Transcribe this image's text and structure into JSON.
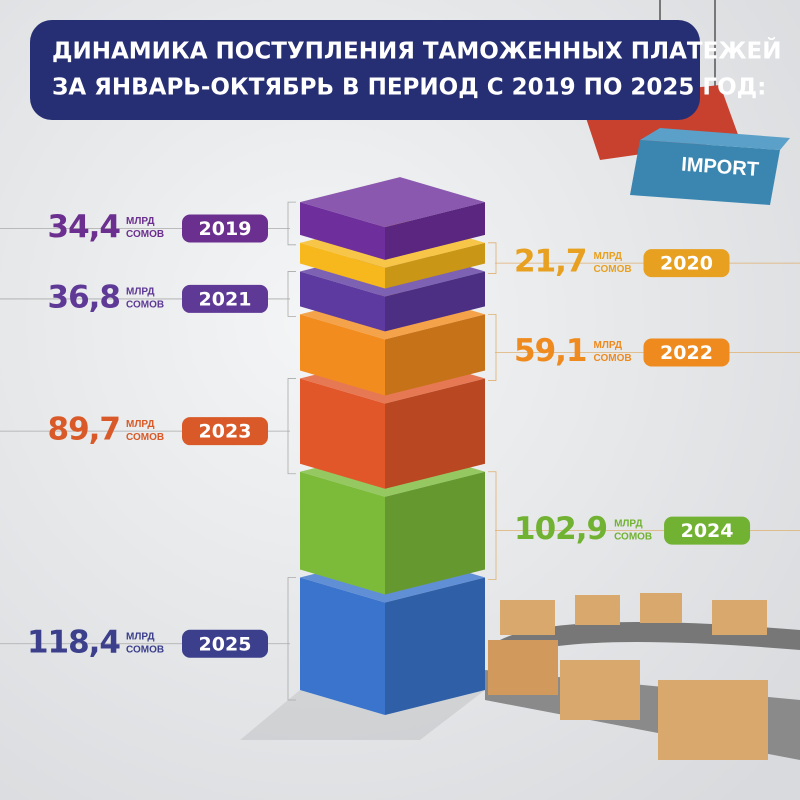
{
  "chart_data": {
    "type": "block-stack",
    "title_lines": [
      "ДИНАМИКА ПОСТУПЛЕНИЯ ТАМОЖЕННЫХ ПЛАТЕЖЕЙ",
      "ЗА ЯНВАРЬ-ОКТЯБРЬ В ПЕРИОД С 2019 ПО 2025 ГОД:"
    ],
    "categories": [
      "2019",
      "2020",
      "2021",
      "2022",
      "2023",
      "2024",
      "2025"
    ],
    "values": [
      34.4,
      21.7,
      36.8,
      59.1,
      89.7,
      102.9,
      118.4
    ],
    "value_labels": [
      "34,4",
      "21,7",
      "36,8",
      "59,1",
      "89,7",
      "102,9",
      "118,4"
    ],
    "unit_lines": [
      "МЛРД",
      "СОМОВ"
    ],
    "colors": [
      "#6e2f9c",
      "#f6b81c",
      "#5d3a9f",
      "#f28c1e",
      "#e2572a",
      "#7cbb3a",
      "#3a74cc"
    ],
    "label_colors": [
      "#6b2f8f",
      "#e8a020",
      "#5e3a96",
      "#ee8a1e",
      "#d95a28",
      "#72b233",
      "#3b3f8c"
    ],
    "container_label": "IMPORT"
  }
}
